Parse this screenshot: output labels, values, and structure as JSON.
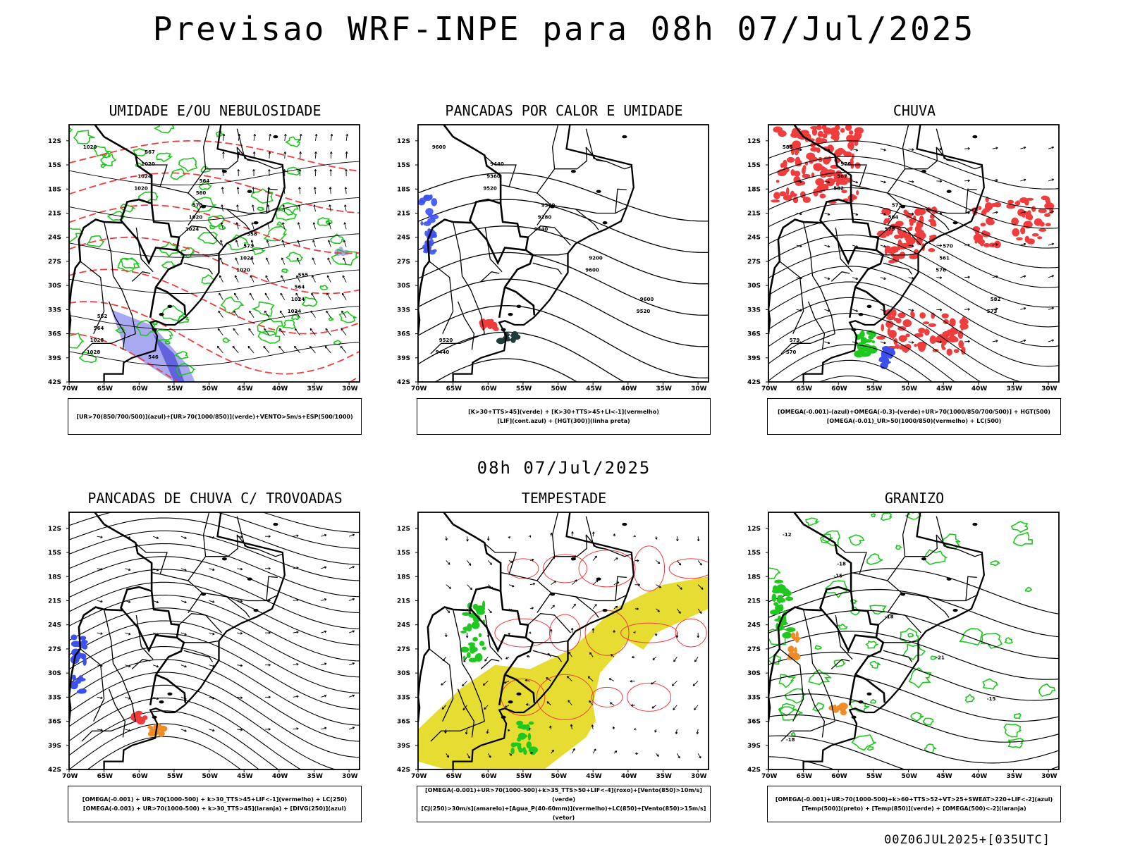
{
  "header": {
    "title": "Previsao WRF-INPE  para 08h 07/Jul/2025"
  },
  "mid_title": "08h 07/Jul/2025",
  "footer": "00Z06JUL2025+[035UTC]",
  "axes": {
    "lat_labels": [
      "12S",
      "15S",
      "18S",
      "21S",
      "24S",
      "27S",
      "30S",
      "33S",
      "36S",
      "39S",
      "42S"
    ],
    "lon_labels": [
      "70W",
      "65W",
      "60W",
      "55W",
      "50W",
      "45W",
      "40W",
      "35W",
      "30W"
    ]
  },
  "panels": [
    {
      "id": "umidade",
      "title": "UMIDADE E/OU NEBULOSIDADE",
      "legend": [
        "[UR>70(850/700/500)](azul)+[UR>70(1000/850)](verde)+VENTO>5m/s+ESP(500/1000)"
      ],
      "contour_labels": [
        "1020",
        "1020",
        "1024",
        "1020",
        "1024",
        "1028",
        "1024",
        "1020",
        "1024",
        "1024",
        "1028",
        "1020",
        "570",
        "573",
        "564",
        "564",
        "567",
        "560",
        "558",
        "555",
        "552",
        "546",
        "564"
      ]
    },
    {
      "id": "pancadas_calor",
      "title": "PANCADAS POR CALOR E UMIDADE",
      "legend": [
        "[K>30+TTS>45](verde) + [K>30+TTS>45+LI<-1](vermelho)",
        "[LIF](cont.azul) + [HGT(300)](linha preta)"
      ],
      "contour_labels": [
        "9600",
        "9520",
        "9440",
        "9600",
        "9520",
        "9440",
        "9360",
        "9280",
        "9200",
        "9600",
        "9520",
        "9440",
        "9360"
      ]
    },
    {
      "id": "chuva",
      "title": "CHUVA",
      "legend": [
        "[OMEGA(-0.001)-(azul)+OMEGA(-0.3)-(verde)+UR>70(1000/850/700/500)] + HGT(500)",
        "[OMEGA(-0.01)_UR>50(1000/850)(vermelho) + LC(500)"
      ],
      "contour_labels": [
        "585",
        "582",
        "579",
        "576",
        "573",
        "570",
        "567",
        "564",
        "561",
        "582",
        "579",
        "576",
        "573",
        "570"
      ]
    },
    {
      "id": "pancadas_trovoadas",
      "title": "PANCADAS DE CHUVA C/ TROVOADAS",
      "legend": [
        "[OMEGA(-0.001) + UR>70(1000-500) + k>30_TTS>45+LIF<-1](vermelho) + LC(250)",
        "[OMEGA(-0.001) + UR>70(1000-500) + k>30_TTS>45](laranja) + [DIVG(250)](azul)"
      ],
      "contour_labels": []
    },
    {
      "id": "tempestade",
      "title": "TEMPESTADE",
      "legend": [
        "[OMEGA(-0.001)+UR>70(1000-500)+k>35_TTS>50+LIF<-4](roxo)+[Vento(850)>10m/s](verde)",
        "[CJ(250)>30m/s](amarelo)+[Agua_P(40-60mm)](vermelho)+LC(850)+[Vento(850)>15m/s](vetor)"
      ],
      "contour_labels": []
    },
    {
      "id": "granizo",
      "title": "GRANIZO",
      "legend": [
        "[OMEGA(-0.001)+UR>70(1000-500)+k>60+TTS>52+VT>25+SWEAT>220+LIF<-2](azul)",
        "[Temp(500)](preto) + [Temp(850)](verde) + [OMEGA(500)<-2](laranja)"
      ],
      "contour_labels": [
        "-12",
        "-15",
        "-18",
        "-21",
        "-15",
        "-18",
        "-18"
      ]
    }
  ],
  "colors": {
    "red": "#f03c3c",
    "green": "#1ec81e",
    "blue": "#3c50f0",
    "lightblue": "#a0a0f0",
    "yellow": "#e6dc32",
    "orange": "#f08c28",
    "darkgreen": "#1e3c3c"
  }
}
